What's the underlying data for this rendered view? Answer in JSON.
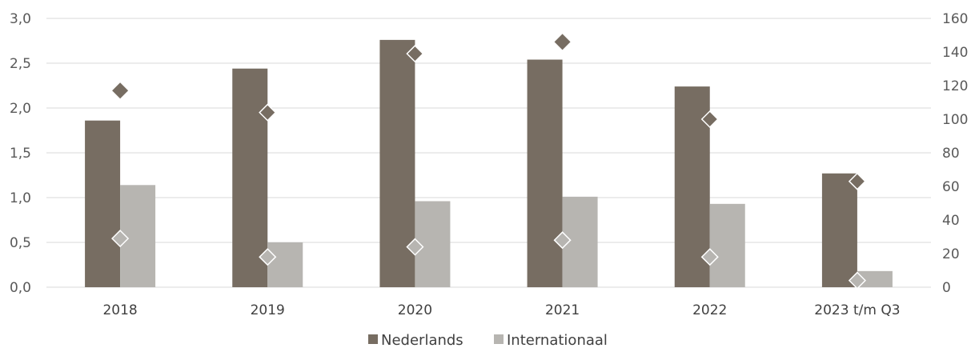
{
  "chart_data": {
    "type": "bar",
    "categories": [
      "2018",
      "2019",
      "2020",
      "2021",
      "2022",
      "2023 t/m Q3"
    ],
    "series": [
      {
        "name": "Nederlands",
        "values": [
          1.86,
          2.44,
          2.76,
          2.54,
          2.24,
          1.27
        ],
        "color": "#776d62",
        "axis": "left"
      },
      {
        "name": "Internationaal",
        "values": [
          1.14,
          0.5,
          0.96,
          1.01,
          0.93,
          0.18
        ],
        "color": "#b7b5b1",
        "axis": "left"
      },
      {
        "values": [
          117,
          null,
          null,
          146,
          null,
          null
        ],
        "marker": "diamond",
        "color": "#776d62",
        "axis": "right"
      },
      {
        "values": [
          null,
          104,
          139,
          null,
          100,
          63
        ],
        "marker": "diamond",
        "color": "#776d62",
        "outline": "#ffffff",
        "axis": "right"
      },
      {
        "values": [
          29,
          18,
          24,
          28,
          18,
          4
        ],
        "marker": "diamond",
        "color": "#b7b5b1",
        "outline": "#ffffff",
        "axis": "right"
      }
    ],
    "y_left": {
      "ylim": [
        0,
        3.0
      ],
      "ticks": [
        "0,0",
        "0,5",
        "1,0",
        "1,5",
        "2,0",
        "2,5",
        "3,0"
      ]
    },
    "y_right": {
      "ylim": [
        0,
        160
      ],
      "ticks": [
        "0",
        "20",
        "40",
        "60",
        "80",
        "100",
        "120",
        "140",
        "160"
      ]
    },
    "grid": true,
    "legend": "bottom-center",
    "legend_items": [
      "Nederlands",
      "Internationaal"
    ],
    "title": "",
    "xlabel": "",
    "ylabel": ""
  }
}
